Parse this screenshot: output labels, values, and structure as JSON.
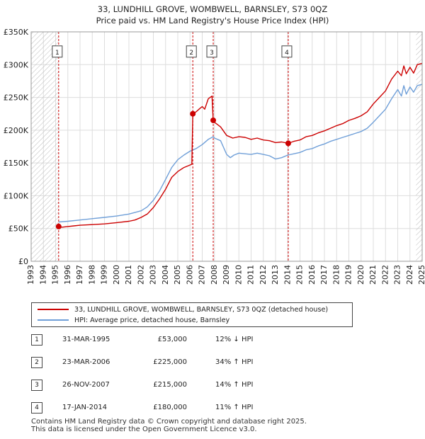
{
  "title_line1": "33, LUNDHILL GROVE, WOMBWELL, BARNSLEY, S73 0QZ",
  "title_line2": "Price paid vs. HM Land Registry's House Price Index (HPI)",
  "colors": {
    "property": "#cc0000",
    "hpi": "#6f9fd8",
    "marker_line": "#cc0000",
    "grid": "#dddddd"
  },
  "chart_data": {
    "type": "line",
    "title": "Price paid vs. HM Land Registry's House Price Index (HPI)",
    "xlabel": "",
    "ylabel": "",
    "xlim": [
      1993,
      2025
    ],
    "ylim": [
      0,
      350000
    ],
    "x_ticks": [
      "1993",
      "1994",
      "1995",
      "1996",
      "1997",
      "1998",
      "1999",
      "2000",
      "2001",
      "2002",
      "2003",
      "2004",
      "2005",
      "2006",
      "2007",
      "2008",
      "2009",
      "2010",
      "2011",
      "2012",
      "2013",
      "2014",
      "2015",
      "2016",
      "2017",
      "2018",
      "2019",
      "2020",
      "2021",
      "2022",
      "2023",
      "2024",
      "2025"
    ],
    "y_ticks": [
      {
        "value": 0,
        "label": "£0"
      },
      {
        "value": 50000,
        "label": "£50K"
      },
      {
        "value": 100000,
        "label": "£100K"
      },
      {
        "value": 150000,
        "label": "£150K"
      },
      {
        "value": 200000,
        "label": "£200K"
      },
      {
        "value": 250000,
        "label": "£250K"
      },
      {
        "value": 300000,
        "label": "£300K"
      },
      {
        "value": 350000,
        "label": "£350K"
      }
    ],
    "hatched_ranges": [
      [
        1993,
        1995.25
      ],
      [
        2024.5,
        2025
      ]
    ],
    "series": [
      {
        "name": "33, LUNDHILL GROVE, WOMBWELL, BARNSLEY, S73 0QZ (detached house)",
        "color": "#cc0000",
        "points": [
          [
            1995.25,
            53000
          ],
          [
            1995.5,
            52000
          ],
          [
            1996,
            53000
          ],
          [
            1996.5,
            54000
          ],
          [
            1997,
            55000
          ],
          [
            1998,
            56000
          ],
          [
            1999,
            57000
          ],
          [
            2000,
            59000
          ],
          [
            2001,
            61000
          ],
          [
            2001.5,
            63000
          ],
          [
            2002,
            67000
          ],
          [
            2002.5,
            72000
          ],
          [
            2003,
            82000
          ],
          [
            2003.5,
            95000
          ],
          [
            2004,
            110000
          ],
          [
            2004.5,
            128000
          ],
          [
            2005,
            137000
          ],
          [
            2005.5,
            143000
          ],
          [
            2006.15,
            148000
          ],
          [
            2006.23,
            225000
          ],
          [
            2006.5,
            228000
          ],
          [
            2006.8,
            233000
          ],
          [
            2007,
            236000
          ],
          [
            2007.2,
            232000
          ],
          [
            2007.5,
            248000
          ],
          [
            2007.8,
            252000
          ],
          [
            2007.9,
            215000
          ],
          [
            2008,
            212000
          ],
          [
            2008.5,
            205000
          ],
          [
            2009,
            192000
          ],
          [
            2009.5,
            188000
          ],
          [
            2010,
            190000
          ],
          [
            2010.5,
            189000
          ],
          [
            2011,
            186000
          ],
          [
            2011.5,
            188000
          ],
          [
            2012,
            185000
          ],
          [
            2012.5,
            184000
          ],
          [
            2013,
            181000
          ],
          [
            2013.5,
            182000
          ],
          [
            2014.04,
            180000
          ],
          [
            2014.5,
            183000
          ],
          [
            2015,
            185000
          ],
          [
            2015.5,
            190000
          ],
          [
            2016,
            192000
          ],
          [
            2016.5,
            196000
          ],
          [
            2017,
            199000
          ],
          [
            2017.5,
            203000
          ],
          [
            2018,
            207000
          ],
          [
            2018.5,
            210000
          ],
          [
            2019,
            215000
          ],
          [
            2019.5,
            218000
          ],
          [
            2020,
            222000
          ],
          [
            2020.5,
            228000
          ],
          [
            2021,
            240000
          ],
          [
            2021.5,
            250000
          ],
          [
            2022,
            260000
          ],
          [
            2022.5,
            278000
          ],
          [
            2023,
            290000
          ],
          [
            2023.3,
            283000
          ],
          [
            2023.5,
            298000
          ],
          [
            2023.7,
            286000
          ],
          [
            2024,
            296000
          ],
          [
            2024.3,
            287000
          ],
          [
            2024.6,
            300000
          ],
          [
            2025,
            302000
          ]
        ]
      },
      {
        "name": "HPI: Average price, detached house, Barnsley",
        "color": "#6f9fd8",
        "points": [
          [
            1995.25,
            60000
          ],
          [
            1996,
            61000
          ],
          [
            1997,
            63000
          ],
          [
            1998,
            65000
          ],
          [
            1999,
            67000
          ],
          [
            2000,
            69000
          ],
          [
            2001,
            72000
          ],
          [
            2002,
            77000
          ],
          [
            2002.5,
            83000
          ],
          [
            2003,
            93000
          ],
          [
            2003.5,
            107000
          ],
          [
            2004,
            125000
          ],
          [
            2004.5,
            143000
          ],
          [
            2005,
            155000
          ],
          [
            2005.5,
            162000
          ],
          [
            2006,
            168000
          ],
          [
            2006.5,
            172000
          ],
          [
            2007,
            178000
          ],
          [
            2007.5,
            186000
          ],
          [
            2007.9,
            190000
          ],
          [
            2008,
            188000
          ],
          [
            2008.5,
            184000
          ],
          [
            2009,
            163000
          ],
          [
            2009.3,
            158000
          ],
          [
            2009.6,
            162000
          ],
          [
            2010,
            165000
          ],
          [
            2010.5,
            164000
          ],
          [
            2011,
            163000
          ],
          [
            2011.5,
            165000
          ],
          [
            2012,
            163000
          ],
          [
            2012.5,
            161000
          ],
          [
            2013,
            156000
          ],
          [
            2013.5,
            158000
          ],
          [
            2014,
            162000
          ],
          [
            2014.5,
            164000
          ],
          [
            2015,
            166000
          ],
          [
            2015.5,
            170000
          ],
          [
            2016,
            172000
          ],
          [
            2016.5,
            176000
          ],
          [
            2017,
            179000
          ],
          [
            2017.5,
            183000
          ],
          [
            2018,
            186000
          ],
          [
            2018.5,
            189000
          ],
          [
            2019,
            192000
          ],
          [
            2019.5,
            195000
          ],
          [
            2020,
            198000
          ],
          [
            2020.5,
            203000
          ],
          [
            2021,
            212000
          ],
          [
            2021.5,
            222000
          ],
          [
            2022,
            232000
          ],
          [
            2022.5,
            248000
          ],
          [
            2023,
            262000
          ],
          [
            2023.3,
            252000
          ],
          [
            2023.5,
            268000
          ],
          [
            2023.7,
            255000
          ],
          [
            2024,
            266000
          ],
          [
            2024.3,
            258000
          ],
          [
            2024.6,
            268000
          ],
          [
            2025,
            270000
          ]
        ]
      }
    ],
    "sales": [
      {
        "label": "1",
        "x": 1995.25,
        "price": 53000
      },
      {
        "label": "2",
        "x": 2006.23,
        "price": 225000
      },
      {
        "label": "3",
        "x": 2007.9,
        "price": 215000
      },
      {
        "label": "4",
        "x": 2014.04,
        "price": 180000
      }
    ],
    "marker_label_value": 320000
  },
  "legend": {
    "property_label": "33, LUNDHILL GROVE, WOMBWELL, BARNSLEY, S73 0QZ (detached house)",
    "hpi_label": "HPI: Average price, detached house, Barnsley"
  },
  "transactions": [
    {
      "num": "1",
      "date": "31-MAR-1995",
      "price": "£53,000",
      "hpi": "12% ↓ HPI"
    },
    {
      "num": "2",
      "date": "23-MAR-2006",
      "price": "£225,000",
      "hpi": "34% ↑ HPI"
    },
    {
      "num": "3",
      "date": "26-NOV-2007",
      "price": "£215,000",
      "hpi": "14% ↑ HPI"
    },
    {
      "num": "4",
      "date": "17-JAN-2014",
      "price": "£180,000",
      "hpi": "11% ↑ HPI"
    }
  ],
  "footer_line1": "Contains HM Land Registry data © Crown copyright and database right 2025.",
  "footer_line2": "This data is licensed under the Open Government Licence v3.0."
}
